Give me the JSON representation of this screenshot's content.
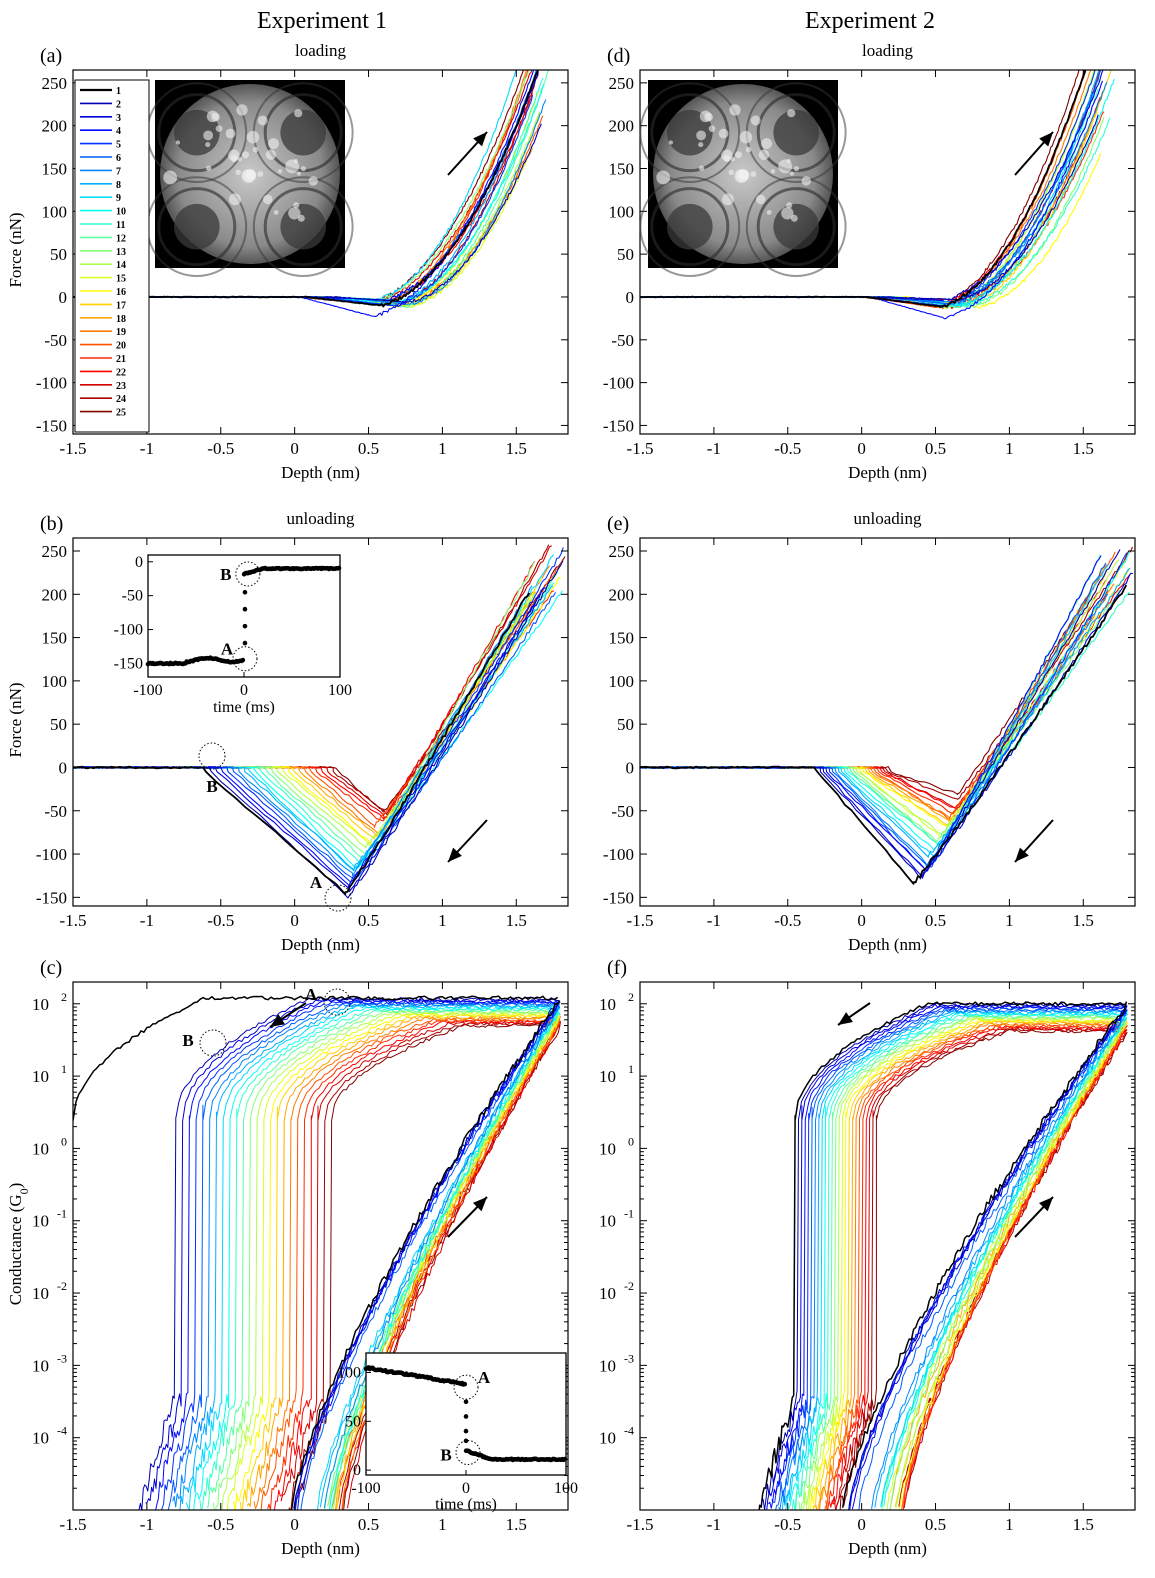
{
  "columns": [
    "Experiment 1",
    "Experiment 2"
  ],
  "x_tick_labels": [
    "-1.5",
    "-1",
    "-0.5",
    "0",
    "0.5",
    "1",
    "1.5"
  ],
  "force_tick_labels": [
    "250",
    "200",
    "150",
    "100",
    "50",
    "0",
    "-50",
    "-100",
    "-150"
  ],
  "conductance_tick_labels": [
    "10",
    "10",
    "10",
    "10",
    "10",
    "10"
  ],
  "conductance_tick_exponents": [
    "2",
    "1",
    "0",
    "-1",
    "-2",
    "-3",
    "-4"
  ],
  "inset_time_ticks": [
    "-100",
    "0",
    "100"
  ],
  "inset_force_ticks": [
    "0",
    "-50",
    "-100",
    "-150"
  ],
  "inset_cond_ticks": [
    "100",
    "50",
    "0"
  ],
  "legend_entries": [
    "1",
    "2",
    "3",
    "4",
    "5",
    "6",
    "7",
    "8",
    "9",
    "10",
    "11",
    "12",
    "13",
    "14",
    "15",
    "16",
    "17",
    "18",
    "19",
    "20",
    "21",
    "22",
    "23",
    "24",
    "25"
  ],
  "colors": {
    "curve_colormap": "jet",
    "first_curve": "#000000"
  },
  "chart_data": [
    {
      "panel": "(a)",
      "type": "line",
      "title": "loading",
      "xlabel": "Depth (nm)",
      "ylabel": "Force (nN)",
      "xlim": [
        -1.5,
        1.85
      ],
      "ylim": [
        -160,
        265
      ],
      "series_count": 25,
      "approx_curve": {
        "x": [
          -1.5,
          0.3,
          0.55,
          0.75,
          1.0,
          1.2,
          1.45,
          1.7
        ],
        "y": [
          0,
          -1,
          -3,
          -5,
          25,
          75,
          150,
          215
        ]
      },
      "annotations": [
        "arrow up-right (loading direction)",
        "inset: FIM image of tip"
      ]
    },
    {
      "panel": "(b)",
      "type": "line",
      "title": "unloading",
      "xlabel": "Depth (nm)",
      "ylabel": "Force (nN)",
      "xlim": [
        -1.5,
        1.85
      ],
      "ylim": [
        -160,
        265
      ],
      "series_count": 25,
      "approx_min_force": {
        "curve_1": [
          0.3,
          -155
        ],
        "curve_25": [
          0.6,
          -50
        ]
      },
      "markers": [
        "A",
        "B"
      ],
      "inset": {
        "xlabel": "time (ms)",
        "xlim": [
          -100,
          100
        ],
        "ylim": [
          -170,
          10
        ],
        "x": [
          -100,
          -60,
          -40,
          -10,
          0,
          0,
          0,
          5,
          10,
          30,
          100
        ],
        "y": [
          -150,
          -148,
          -143,
          -146,
          -145,
          -80,
          -20,
          -20,
          -15,
          -12,
          -10
        ]
      }
    },
    {
      "panel": "(c)",
      "type": "line",
      "title": "",
      "xlabel": "Depth (nm)",
      "ylabel": "Conductance (G0)",
      "xlim": [
        -1.5,
        1.85
      ],
      "yscale": "log",
      "ylim": [
        1e-05,
        200
      ],
      "series_count": 25,
      "approx_saturation_G0": {
        "curve_1": 120,
        "curve_25": 50
      },
      "markers": [
        "A",
        "B"
      ],
      "inset": {
        "xlabel": "time (ms)",
        "xlim": [
          -100,
          100
        ],
        "ylim": [
          0,
          120
        ],
        "x": [
          -100,
          -60,
          -30,
          -5,
          0,
          0,
          3,
          20,
          100
        ],
        "y": [
          105,
          100,
          92,
          88,
          85,
          40,
          20,
          14,
          10
        ]
      }
    },
    {
      "panel": "(d)",
      "type": "line",
      "title": "loading",
      "xlabel": "Depth (nm)",
      "ylabel": "",
      "xlim": [
        -1.5,
        1.85
      ],
      "ylim": [
        -160,
        265
      ],
      "series_count": 25,
      "annotations": [
        "arrow up-right",
        "inset: FIM image of tip"
      ]
    },
    {
      "panel": "(e)",
      "type": "line",
      "title": "unloading",
      "xlabel": "Depth (nm)",
      "ylabel": "",
      "xlim": [
        -1.5,
        1.85
      ],
      "ylim": [
        -160,
        265
      ],
      "series_count": 25,
      "approx_min_force": {
        "curve_1": [
          0.35,
          -140
        ],
        "curve_25": [
          0.65,
          -50
        ]
      }
    },
    {
      "panel": "(f)",
      "type": "line",
      "title": "",
      "xlabel": "Depth (nm)",
      "ylabel": "",
      "xlim": [
        -1.5,
        1.85
      ],
      "yscale": "log",
      "ylim": [
        1e-05,
        200
      ],
      "series_count": 25,
      "approx_saturation_G0": {
        "curve_1": 100,
        "curve_25": 40
      }
    }
  ]
}
